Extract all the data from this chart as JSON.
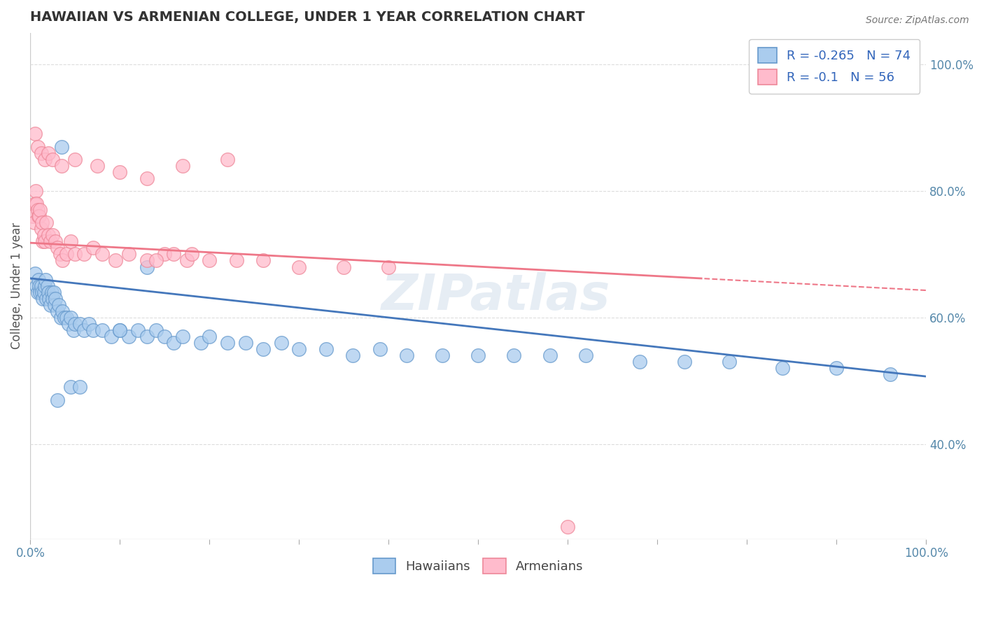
{
  "title": "HAWAIIAN VS ARMENIAN COLLEGE, UNDER 1 YEAR CORRELATION CHART",
  "source_text": "Source: ZipAtlas.com",
  "ylabel": "College, Under 1 year",
  "xlim": [
    0.0,
    1.0
  ],
  "ylim": [
    0.25,
    1.05
  ],
  "xtick_positions": [
    0.0,
    0.1,
    0.2,
    0.3,
    0.4,
    0.5,
    0.6,
    0.7,
    0.8,
    0.9,
    1.0
  ],
  "xtick_labels_show": [
    "0.0%",
    "",
    "",
    "",
    "",
    "",
    "",
    "",
    "",
    "",
    "100.0%"
  ],
  "ytick_positions": [
    0.4,
    0.6,
    0.8,
    1.0
  ],
  "ytick_labels": [
    "40.0%",
    "60.0%",
    "80.0%",
    "100.0%"
  ],
  "background_color": "#ffffff",
  "grid_color": "#dddddd",
  "hawaiian_line_color": "#4477bb",
  "armenian_line_color": "#ee7788",
  "hawaiian_marker_face": "#aaccee",
  "hawaiian_marker_edge": "#6699cc",
  "armenian_marker_face": "#ffbbcc",
  "armenian_marker_edge": "#ee8899",
  "hawaiian_R": -0.265,
  "hawaiian_N": 74,
  "armenian_R": -0.1,
  "armenian_N": 56,
  "legend_label_hawaiian": "Hawaiians",
  "legend_label_armenian": "Armenians",
  "watermark": "ZIPatlas",
  "legend_text_color": "#3366bb",
  "tick_color": "#5588aa",
  "hawaiian_x": [
    0.005,
    0.007,
    0.008,
    0.009,
    0.01,
    0.011,
    0.012,
    0.013,
    0.014,
    0.015,
    0.016,
    0.017,
    0.018,
    0.019,
    0.02,
    0.021,
    0.022,
    0.024,
    0.025,
    0.026,
    0.027,
    0.028,
    0.03,
    0.032,
    0.034,
    0.036,
    0.038,
    0.04,
    0.043,
    0.045,
    0.048,
    0.05,
    0.055,
    0.06,
    0.065,
    0.07,
    0.08,
    0.09,
    0.1,
    0.11,
    0.12,
    0.13,
    0.14,
    0.15,
    0.16,
    0.17,
    0.19,
    0.2,
    0.22,
    0.24,
    0.26,
    0.28,
    0.3,
    0.33,
    0.36,
    0.39,
    0.42,
    0.46,
    0.5,
    0.54,
    0.58,
    0.62,
    0.68,
    0.73,
    0.78,
    0.84,
    0.9,
    0.96,
    0.03,
    0.035,
    0.045,
    0.055,
    0.1,
    0.13
  ],
  "hawaiian_y": [
    0.67,
    0.65,
    0.64,
    0.66,
    0.65,
    0.64,
    0.65,
    0.64,
    0.63,
    0.64,
    0.65,
    0.66,
    0.63,
    0.65,
    0.64,
    0.63,
    0.62,
    0.64,
    0.63,
    0.64,
    0.62,
    0.63,
    0.61,
    0.62,
    0.6,
    0.61,
    0.6,
    0.6,
    0.59,
    0.6,
    0.58,
    0.59,
    0.59,
    0.58,
    0.59,
    0.58,
    0.58,
    0.57,
    0.58,
    0.57,
    0.58,
    0.57,
    0.58,
    0.57,
    0.56,
    0.57,
    0.56,
    0.57,
    0.56,
    0.56,
    0.55,
    0.56,
    0.55,
    0.55,
    0.54,
    0.55,
    0.54,
    0.54,
    0.54,
    0.54,
    0.54,
    0.54,
    0.53,
    0.53,
    0.53,
    0.52,
    0.52,
    0.51,
    0.47,
    0.87,
    0.49,
    0.49,
    0.58,
    0.68
  ],
  "armenian_x": [
    0.003,
    0.004,
    0.005,
    0.006,
    0.007,
    0.008,
    0.009,
    0.01,
    0.011,
    0.012,
    0.013,
    0.014,
    0.015,
    0.016,
    0.018,
    0.02,
    0.022,
    0.025,
    0.028,
    0.03,
    0.033,
    0.036,
    0.04,
    0.045,
    0.05,
    0.06,
    0.07,
    0.08,
    0.095,
    0.11,
    0.13,
    0.15,
    0.175,
    0.2,
    0.23,
    0.26,
    0.3,
    0.35,
    0.4,
    0.14,
    0.16,
    0.18,
    0.6,
    0.005,
    0.008,
    0.012,
    0.016,
    0.02,
    0.025,
    0.035,
    0.05,
    0.075,
    0.1,
    0.13,
    0.17,
    0.22
  ],
  "armenian_y": [
    0.76,
    0.75,
    0.78,
    0.8,
    0.78,
    0.77,
    0.76,
    0.76,
    0.77,
    0.74,
    0.75,
    0.72,
    0.73,
    0.72,
    0.75,
    0.73,
    0.72,
    0.73,
    0.72,
    0.71,
    0.7,
    0.69,
    0.7,
    0.72,
    0.7,
    0.7,
    0.71,
    0.7,
    0.69,
    0.7,
    0.69,
    0.7,
    0.69,
    0.69,
    0.69,
    0.69,
    0.68,
    0.68,
    0.68,
    0.69,
    0.7,
    0.7,
    0.27,
    0.89,
    0.87,
    0.86,
    0.85,
    0.86,
    0.85,
    0.84,
    0.85,
    0.84,
    0.83,
    0.82,
    0.84,
    0.85
  ],
  "armenian_line_solid_x_end": 0.75,
  "armenian_line_dashed_x_start": 0.75
}
